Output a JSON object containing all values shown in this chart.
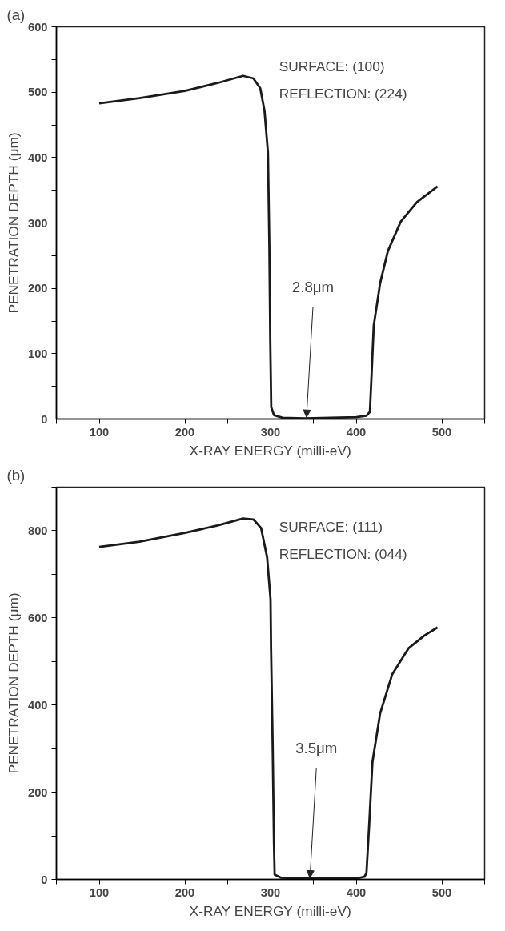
{
  "chart_data": [
    {
      "type": "line",
      "title": "(a)",
      "xlabel": "X-RAY ENERGY (milli-eV)",
      "ylabel": "PENETRATION DEPTH (μm)",
      "grid": false,
      "marker": "none",
      "line_style": "solid",
      "xlim": [
        50,
        550
      ],
      "ylim": [
        0,
        600
      ],
      "xticks": [
        {
          "value": 50,
          "label": null
        },
        100,
        {
          "value": 150,
          "label": null
        },
        200,
        {
          "value": 250,
          "label": null
        },
        300,
        {
          "value": 350,
          "label": null
        },
        400,
        {
          "value": 450,
          "label": null
        },
        500,
        {
          "value": 550,
          "label": null
        }
      ],
      "yticks": [
        0,
        {
          "value": 50,
          "label": null
        },
        100,
        {
          "value": 150,
          "label": null
        },
        200,
        {
          "value": 250,
          "label": null
        },
        300,
        {
          "value": 350,
          "label": null
        },
        400,
        {
          "value": 450,
          "label": null
        },
        500,
        {
          "value": 550,
          "label": null
        },
        600
      ],
      "series": [
        {
          "color": "#1a1a1a",
          "x": [
            100,
            147,
            200,
            238,
            268,
            280,
            288,
            293,
            297,
            298.6,
            299.7,
            300.8,
            304,
            314,
            340,
            400,
            412,
            416,
            418,
            420.5,
            428,
            437,
            452,
            471,
            495
          ],
          "values": [
            483,
            491,
            502,
            514,
            525,
            521,
            506,
            471,
            407,
            267,
            118,
            18,
            6,
            2,
            1,
            3,
            5,
            11,
            68,
            143,
            208,
            257,
            302,
            332,
            356
          ]
        }
      ],
      "annotations": [
        "SURFACE:   (100)",
        "REFLECTION: (224)",
        {
          "text": "2.8μm",
          "x": 342,
          "y": 2.8
        }
      ]
    },
    {
      "type": "line",
      "title": "(b)",
      "xlabel": "X-RAY ENERGY (milli-eV)",
      "ylabel": "PENETRATION DEPTH (μm)",
      "grid": false,
      "marker": "none",
      "line_style": "solid",
      "xlim": [
        50,
        550
      ],
      "ylim": [
        0,
        900
      ],
      "xticks": [
        {
          "value": 50,
          "label": null
        },
        100,
        {
          "value": 150,
          "label": null
        },
        200,
        {
          "value": 250,
          "label": null
        },
        300,
        {
          "value": 350,
          "label": null
        },
        400,
        {
          "value": 450,
          "label": null
        },
        500,
        {
          "value": 550,
          "label": null
        }
      ],
      "yticks": [
        0,
        {
          "value": 100,
          "label": null
        },
        200,
        {
          "value": 300,
          "label": null
        },
        400,
        {
          "value": 500,
          "label": null
        },
        600,
        {
          "value": 700,
          "label": null
        },
        800,
        {
          "value": 900,
          "label": null
        }
      ],
      "series": [
        {
          "color": "#1a1a1a",
          "x": [
            100,
            147,
            200,
            238,
            268,
            280,
            289,
            296,
            300,
            300.6,
            302.5,
            304,
            304.8,
            312,
            344,
            400,
            409.6,
            412,
            415,
            419,
            428,
            442,
            461,
            480,
            495
          ],
          "values": [
            763,
            775,
            795,
            812,
            828,
            826,
            806,
            739,
            642,
            530,
            306,
            82,
            11,
            4,
            2,
            2,
            6,
            15,
            119,
            269,
            381,
            470,
            530,
            560,
            578
          ]
        }
      ],
      "annotations": [
        "SURFACE:  (111)",
        "REFLECTION:   (044)",
        {
          "text": "3.5μm",
          "x": 346,
          "y": 3.5
        }
      ]
    }
  ]
}
